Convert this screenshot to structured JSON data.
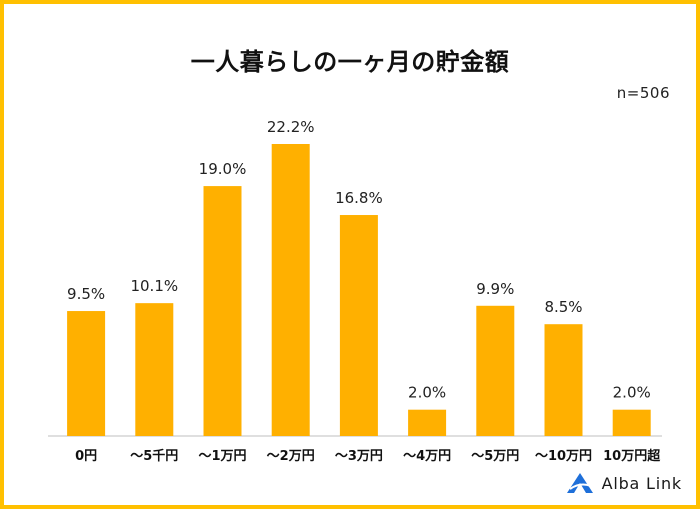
{
  "title": "一人暮らしの一ヶ月の貯金額",
  "sample_size": "n=506",
  "brand": "Alba Link",
  "colors": {
    "bar": "#FFB000",
    "frame": "#FFC000",
    "axis": "#BFBFBF",
    "logo": "#1E6FD9"
  },
  "chart_data": {
    "type": "bar",
    "title": "一人暮らしの一ヶ月の貯金額",
    "categories": [
      "0円",
      "～5千円",
      "～1万円",
      "～2万円",
      "～3万円",
      "～4万円",
      "～5万円",
      "～10万円",
      "10万円超"
    ],
    "values": [
      9.5,
      10.1,
      19.0,
      22.2,
      16.8,
      2.0,
      9.9,
      8.5,
      2.0
    ],
    "value_labels": [
      "9.5%",
      "10.1%",
      "19.0%",
      "22.2%",
      "16.8%",
      "2.0%",
      "9.9%",
      "8.5%",
      "2.0%"
    ],
    "xlabel": "",
    "ylabel": "",
    "ylim": [
      0,
      25
    ],
    "grid": false,
    "legend": "none"
  }
}
